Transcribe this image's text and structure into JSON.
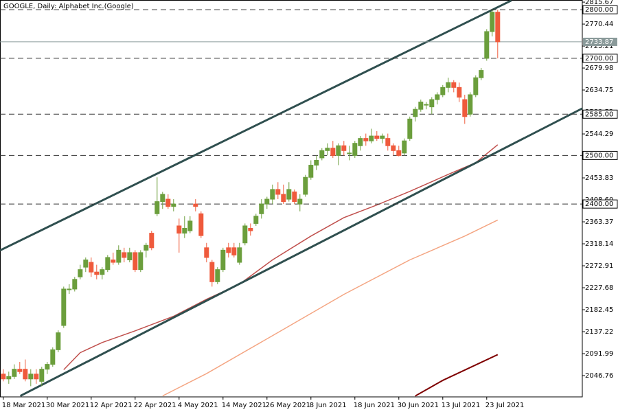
{
  "chart_data": {
    "type": "candlestick",
    "title": "GOOGLE, Daily:  Alphabet Inc.(Google)",
    "categories": [
      "18 Mar 2021",
      null,
      null,
      null,
      null,
      null,
      null,
      null,
      "30 Mar 2021",
      null,
      null,
      null,
      null,
      null,
      null,
      null,
      "12 Apr 2021",
      null,
      null,
      null,
      null,
      null,
      null,
      null,
      "22 Apr 2021",
      null,
      null,
      null,
      null,
      null,
      null,
      null,
      "4 May 2021",
      null,
      null,
      null,
      null,
      null,
      null,
      null,
      "14 May 2021",
      null,
      null,
      null,
      null,
      null,
      null,
      null,
      "26 May 2021",
      null,
      null,
      null,
      null,
      null,
      null,
      null,
      "8 Jun 2021",
      null,
      null,
      null,
      null,
      null,
      null,
      null,
      "18 Jun 2021",
      null,
      null,
      null,
      null,
      null,
      null,
      null,
      "30 Jun 2021",
      null,
      null,
      null,
      null,
      null,
      null,
      null,
      "13 Jul 2021",
      null,
      null,
      null,
      null,
      null,
      null,
      null,
      "23 Jul 2021",
      null,
      null
    ],
    "open": [
      2050,
      2040,
      2045,
      2060,
      2060,
      2040,
      2050,
      2035,
      2060,
      2070,
      2100,
      2150,
      2225,
      2225,
      2250,
      2270,
      2280,
      2260,
      2255,
      2265,
      2285,
      2280,
      2300,
      2285,
      2300,
      2265,
      2305,
      2340,
      2380,
      2405,
      2410,
      2395,
      2355,
      2340,
      2345,
      2400,
      2380,
      2310,
      2280,
      2240,
      2265,
      2310,
      2310,
      2280,
      2320,
      2350,
      2360,
      2380,
      2400,
      2410,
      2430,
      2420,
      2410,
      2425,
      2400,
      2420,
      2455,
      2480,
      2495,
      2510,
      2515,
      2500,
      2520,
      2505,
      2500,
      2520,
      2535,
      2530,
      2540,
      2535,
      2535,
      2520,
      2510,
      2505,
      2535,
      2580,
      2595,
      2605,
      2600,
      2615,
      2625,
      2640,
      2650,
      2640,
      2615,
      2585,
      2625,
      2660,
      2700,
      2755,
      2795
    ],
    "high": [
      2060,
      2055,
      2070,
      2075,
      2080,
      2060,
      2060,
      2065,
      2075,
      2105,
      2140,
      2230,
      2235,
      2250,
      2275,
      2290,
      2290,
      2275,
      2270,
      2295,
      2300,
      2315,
      2310,
      2310,
      2305,
      2305,
      2320,
      2345,
      2455,
      2425,
      2420,
      2410,
      2370,
      2375,
      2375,
      2410,
      2385,
      2320,
      2285,
      2270,
      2310,
      2320,
      2320,
      2320,
      2360,
      2360,
      2380,
      2410,
      2415,
      2440,
      2445,
      2440,
      2445,
      2430,
      2420,
      2460,
      2490,
      2500,
      2515,
      2525,
      2530,
      2525,
      2530,
      2520,
      2530,
      2540,
      2545,
      2555,
      2550,
      2545,
      2545,
      2525,
      2520,
      2535,
      2580,
      2600,
      2615,
      2610,
      2620,
      2630,
      2645,
      2660,
      2655,
      2650,
      2625,
      2630,
      2665,
      2680,
      2760,
      2800,
      2800
    ],
    "low": [
      2035,
      2030,
      2040,
      2050,
      2035,
      2025,
      2030,
      2025,
      2050,
      2065,
      2095,
      2145,
      2215,
      2220,
      2245,
      2260,
      2250,
      2245,
      2245,
      2260,
      2275,
      2275,
      2280,
      2280,
      2260,
      2260,
      2290,
      2305,
      2375,
      2390,
      2390,
      2385,
      2300,
      2330,
      2340,
      2385,
      2330,
      2280,
      2230,
      2235,
      2260,
      2290,
      2290,
      2275,
      2315,
      2335,
      2355,
      2370,
      2390,
      2400,
      2410,
      2400,
      2405,
      2400,
      2385,
      2415,
      2450,
      2470,
      2490,
      2500,
      2495,
      2480,
      2500,
      2490,
      2495,
      2510,
      2520,
      2525,
      2530,
      2525,
      2510,
      2500,
      2498,
      2500,
      2530,
      2570,
      2590,
      2595,
      2585,
      2605,
      2620,
      2630,
      2630,
      2610,
      2565,
      2580,
      2620,
      2655,
      2695,
      2745,
      2700
    ],
    "close": [
      2040,
      2045,
      2060,
      2055,
      2040,
      2050,
      2040,
      2060,
      2070,
      2100,
      2135,
      2225,
      2225,
      2245,
      2265,
      2285,
      2260,
      2255,
      2265,
      2290,
      2280,
      2305,
      2290,
      2300,
      2265,
      2300,
      2315,
      2310,
      2405,
      2420,
      2395,
      2400,
      2340,
      2350,
      2365,
      2395,
      2335,
      2290,
      2240,
      2265,
      2305,
      2300,
      2295,
      2310,
      2355,
      2345,
      2375,
      2400,
      2410,
      2430,
      2420,
      2405,
      2430,
      2405,
      2410,
      2455,
      2480,
      2490,
      2510,
      2515,
      2500,
      2520,
      2510,
      2505,
      2525,
      2535,
      2530,
      2540,
      2535,
      2540,
      2520,
      2510,
      2500,
      2530,
      2575,
      2595,
      2610,
      2605,
      2615,
      2625,
      2640,
      2650,
      2640,
      2620,
      2580,
      2625,
      2660,
      2675,
      2755,
      2795,
      2733.87
    ],
    "up_color": "#6b9e3c",
    "down_color": "#ef5a3c",
    "xlim": [
      -0.6,
      105.4
    ],
    "ylim": [
      2003,
      2820
    ],
    "yticks": [
      2815.67,
      2770.44,
      2725.21,
      2679.98,
      2634.75,
      2589.52,
      2544.29,
      2499.06,
      2453.83,
      {
        "value": 2408.6,
        "label": "2408.60"
      },
      2363.37,
      2318.14,
      2272.91,
      2227.68,
      2182.45,
      2137.22,
      2091.99,
      2046.76
    ],
    "levels": [
      {
        "value": 2800,
        "label": "2800.00"
      },
      {
        "value": 2700,
        "label": "2700.00"
      },
      {
        "value": 2585,
        "label": "2585.00"
      },
      {
        "value": 2500,
        "label": "2500.00"
      },
      {
        "value": 2400,
        "label": "2400.00"
      }
    ],
    "price_line": 2733.87,
    "lines": [
      {
        "color": "#c0504d",
        "width": 1.5,
        "x": [
          11,
          14,
          18,
          24,
          31,
          37,
          43,
          49,
          56,
          62,
          68,
          74,
          81,
          86,
          90
        ],
        "values": [
          2059,
          2094,
          2115,
          2139,
          2169,
          2204,
          2235,
          2285,
          2334,
          2372,
          2398,
          2426,
          2461,
          2485,
          2522
        ]
      },
      {
        "color": "#f4a582",
        "width": 1.5,
        "x": [
          29,
          37,
          49,
          62,
          74,
          84,
          90
        ],
        "values": [
          2005,
          2051,
          2129,
          2214,
          2285,
          2334,
          2367
        ]
      },
      {
        "color": "#7f0000",
        "width": 2,
        "x": [
          75,
          80,
          90
        ],
        "values": [
          2005,
          2037,
          2090
        ]
      },
      {
        "color": "#2f4f4f",
        "width": 3,
        "x": [
          -0.6,
          92.5
        ],
        "values": [
          2304.5,
          2819
        ]
      },
      {
        "color": "#2f4f4f",
        "width": 3,
        "x": [
          3.1,
          105.6
        ],
        "values": [
          2005,
          2598
        ]
      }
    ]
  }
}
